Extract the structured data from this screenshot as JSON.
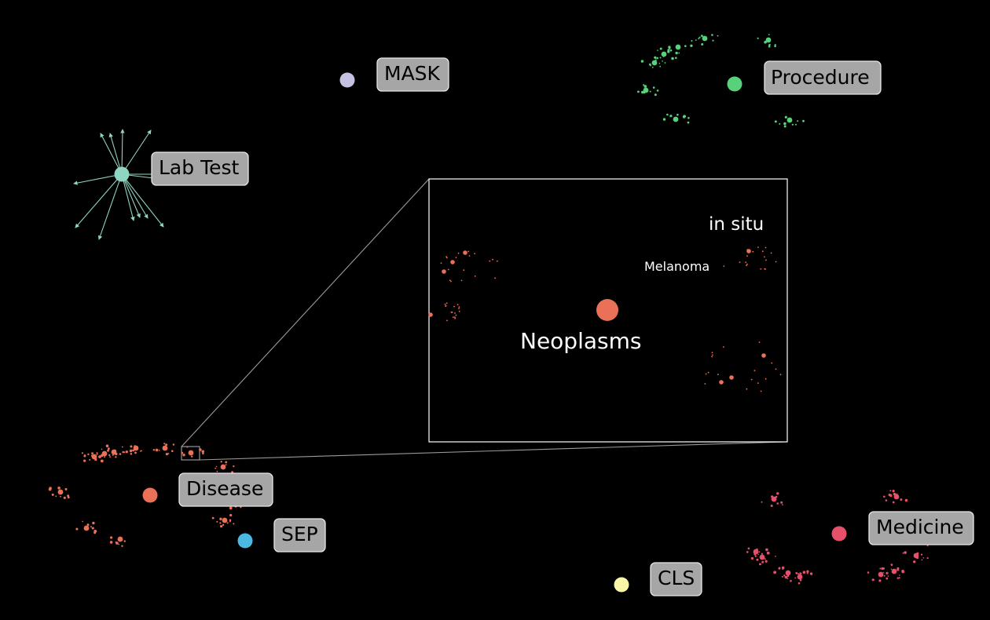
{
  "clusters": [
    {
      "id": "mask",
      "label": "MASK",
      "color": "#c4c2e0"
    },
    {
      "id": "procedure",
      "label": "Procedure",
      "color": "#58d17a"
    },
    {
      "id": "lab-test",
      "label": "Lab Test",
      "color": "#8fd6c2"
    },
    {
      "id": "disease",
      "label": "Disease",
      "color": "#ea7157"
    },
    {
      "id": "sep",
      "label": "SEP",
      "color": "#4ab8e0"
    },
    {
      "id": "cls",
      "label": "CLS",
      "color": "#fbf7a8"
    },
    {
      "id": "medicine",
      "label": "Medicine",
      "color": "#e6506a"
    }
  ],
  "inset": {
    "main_label": "Neoplasms",
    "sub_labels": [
      "in situ",
      "Melanoma"
    ],
    "dot_color": "#ea7157"
  }
}
